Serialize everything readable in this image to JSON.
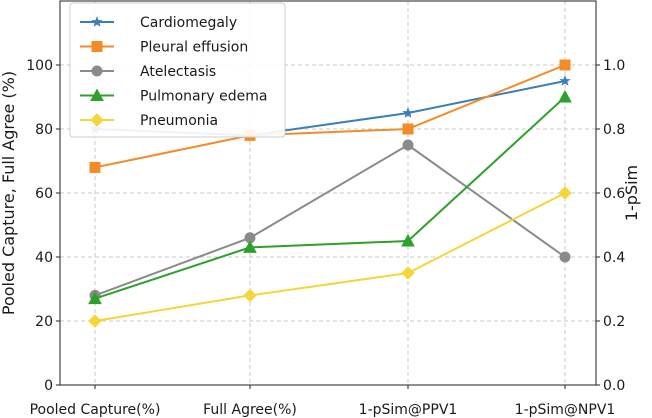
{
  "chart_data": {
    "type": "line",
    "categories": [
      "Pooled Capture(%)",
      "Full Agree(%)",
      "1-pSim@PPV1",
      "1-pSim@NPV1"
    ],
    "ylabel": "Pooled Capture, Full Agree (%)",
    "y2label": "1-pSim",
    "ylim": [
      0,
      120
    ],
    "y2lim": [
      0,
      1.2
    ],
    "yticks": [
      "0",
      "20",
      "40",
      "60",
      "80",
      "100"
    ],
    "y2ticks": [
      "0.0",
      "0.2",
      "0.4",
      "0.6",
      "0.8",
      "1.0"
    ],
    "grid": true,
    "legend_position": "upper-left",
    "series": [
      {
        "name": "Cardiomegaly",
        "color": "#3c7fb8",
        "marker": "star",
        "values": [
          80,
          78,
          85,
          95
        ]
      },
      {
        "name": "Pleural effusion",
        "color": "#f28c28",
        "marker": "square",
        "values": [
          68,
          78,
          80,
          100
        ]
      },
      {
        "name": "Atelectasis",
        "color": "#8a8a8a",
        "marker": "circle",
        "values": [
          28,
          46,
          75,
          40
        ]
      },
      {
        "name": "Pulmonary edema",
        "color": "#2ea02c",
        "marker": "triangle",
        "values": [
          27,
          43,
          45,
          90
        ]
      },
      {
        "name": "Pneumonia",
        "color": "#f4d63a",
        "marker": "diamond",
        "values": [
          20,
          28,
          35,
          60
        ]
      }
    ]
  }
}
